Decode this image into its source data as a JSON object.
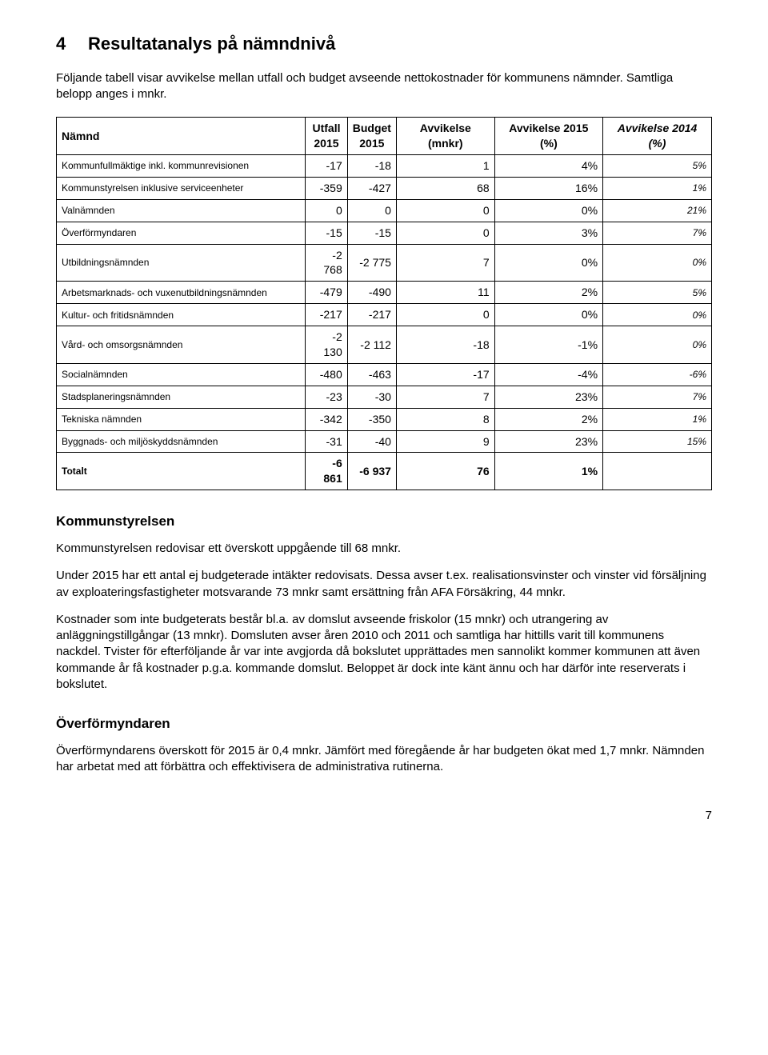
{
  "heading": {
    "number": "4",
    "title": "Resultatanalys på nämndnivå"
  },
  "intro": "Följande tabell visar avvikelse mellan utfall och budget avseende nettokostnader för kommunens nämnder. Samtliga belopp anges i mnkr.",
  "table": {
    "headers": {
      "namnd": "Nämnd",
      "utfall_top": "Utfall",
      "utfall_sub": "2015",
      "budget_top": "Budget",
      "budget_sub": "2015",
      "avv_mnkr": "Avvikelse (mnkr)",
      "avv_2015": "Avvikelse 2015 (%)",
      "avv_2014": "Avvikelse 2014 (%)"
    },
    "rows": [
      {
        "name": "Kommunfullmäktige inkl. kommunrevisionen",
        "utfall": "-17",
        "budget": "-18",
        "avv": "1",
        "p2015": "4%",
        "p2014": "5%"
      },
      {
        "name": "Kommunstyrelsen inklusive serviceenheter",
        "utfall": "-359",
        "budget": "-427",
        "avv": "68",
        "p2015": "16%",
        "p2014": "1%"
      },
      {
        "name": "Valnämnden",
        "utfall": "0",
        "budget": "0",
        "avv": "0",
        "p2015": "0%",
        "p2014": "21%"
      },
      {
        "name": "Överförmyndaren",
        "utfall": "-15",
        "budget": "-15",
        "avv": "0",
        "p2015": "3%",
        "p2014": "7%"
      },
      {
        "name": "Utbildningsnämnden",
        "utfall": "-2 768",
        "budget": "-2 775",
        "avv": "7",
        "p2015": "0%",
        "p2014": "0%"
      },
      {
        "name": "Arbetsmarknads- och vuxenutbildningsnämnden",
        "utfall": "-479",
        "budget": "-490",
        "avv": "11",
        "p2015": "2%",
        "p2014": "5%"
      },
      {
        "name": "Kultur- och fritidsnämnden",
        "utfall": "-217",
        "budget": "-217",
        "avv": "0",
        "p2015": "0%",
        "p2014": "0%"
      },
      {
        "name": "Vård- och omsorgsnämnden",
        "utfall": "-2 130",
        "budget": "-2 112",
        "avv": "-18",
        "p2015": "-1%",
        "p2014": "0%"
      },
      {
        "name": "Socialnämnden",
        "utfall": "-480",
        "budget": "-463",
        "avv": "-17",
        "p2015": "-4%",
        "p2014": "-6%"
      },
      {
        "name": "Stadsplaneringsnämnden",
        "utfall": "-23",
        "budget": "-30",
        "avv": "7",
        "p2015": "23%",
        "p2014": "7%"
      },
      {
        "name": "Tekniska nämnden",
        "utfall": "-342",
        "budget": "-350",
        "avv": "8",
        "p2015": "2%",
        "p2014": "1%"
      },
      {
        "name": "Byggnads- och miljöskyddsnämnden",
        "utfall": "-31",
        "budget": "-40",
        "avv": "9",
        "p2015": "23%",
        "p2014": "15%"
      }
    ],
    "total": {
      "name": "Totalt",
      "utfall": "-6 861",
      "budget": "-6 937",
      "avv": "76",
      "p2015": "1%",
      "p2014": ""
    }
  },
  "sections": {
    "kommunstyrelsen": {
      "heading": "Kommunstyrelsen",
      "p1": "Kommunstyrelsen redovisar ett överskott uppgående till 68 mnkr.",
      "p2": "Under 2015 har ett antal ej budgeterade intäkter redovisats. Dessa avser t.ex. realisationsvinster och vinster vid försäljning av exploateringsfastigheter motsvarande 73 mnkr samt ersättning från AFA Försäkring, 44 mnkr.",
      "p3": "Kostnader som inte budgeterats består bl.a. av domslut avseende friskolor (15 mnkr) och utrangering av anläggningstillgångar (13 mnkr). Domsluten avser åren 2010 och 2011 och samtliga har hittills varit till kommunens nackdel. Tvister för efterföljande år var inte avgjorda då bokslutet upprättades men sannolikt kommer kommunen att även kommande år få kostnader p.g.a. kommande domslut. Beloppet är dock inte känt ännu och har därför inte reserverats i bokslutet."
    },
    "overformyndaren": {
      "heading": "Överförmyndaren",
      "p1": "Överförmyndarens överskott för 2015 är 0,4 mnkr. Jämfört med föregående år har budgeten ökat med 1,7 mnkr. Nämnden har arbetat med att förbättra och effektivisera de administrativa rutinerna."
    }
  },
  "page_number": "7",
  "style": {
    "name_font_size": "12px",
    "p2014_font_size": "12px"
  }
}
